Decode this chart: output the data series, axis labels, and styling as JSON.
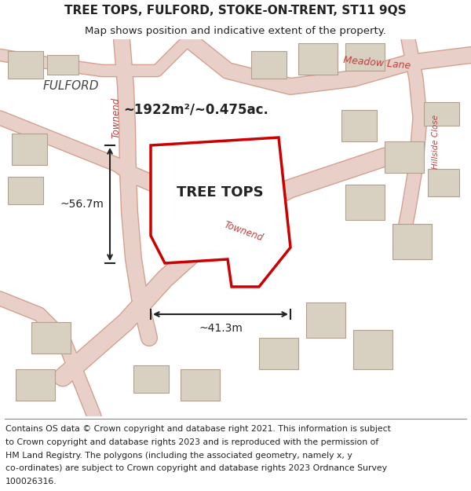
{
  "title_line1": "TREE TOPS, FULFORD, STOKE-ON-TRENT, ST11 9QS",
  "title_line2": "Map shows position and indicative extent of the property.",
  "property_label": "TREE TOPS",
  "area_label": "~1922m²/~0.475ac.",
  "dim_width": "~41.3m",
  "dim_height": "~56.7m",
  "footer_text": "Contains OS data © Crown copyright and database right 2021. This information is subject to Crown copyright and database rights 2023 and is reproduced with the permission of HM Land Registry. The polygons (including the associated geometry, namely x, y co-ordinates) are subject to Crown copyright and database rights 2023 Ordnance Survey 100026316.",
  "map_bg_color": "#f0ece4",
  "road_color": "#e8d0c8",
  "road_outline_color": "#d4a090",
  "plot_fill_color": "#ffffff",
  "plot_edge_color": "#cc0000",
  "road_label_color": "#c04040",
  "text_dark": "#222222",
  "text_medium": "#444444",
  "building_color": "#d8d0c0",
  "building_outline": "#b0a090",
  "meadow_lane_label": "Meadow Lane",
  "hillside_label": "Hillside Close",
  "townend_label1": "Townend",
  "townend_label2": "Townend",
  "fulford_label": "FULFORD",
  "title_fontsize": 11,
  "subtitle_fontsize": 9.5,
  "footer_fontsize": 7.8
}
